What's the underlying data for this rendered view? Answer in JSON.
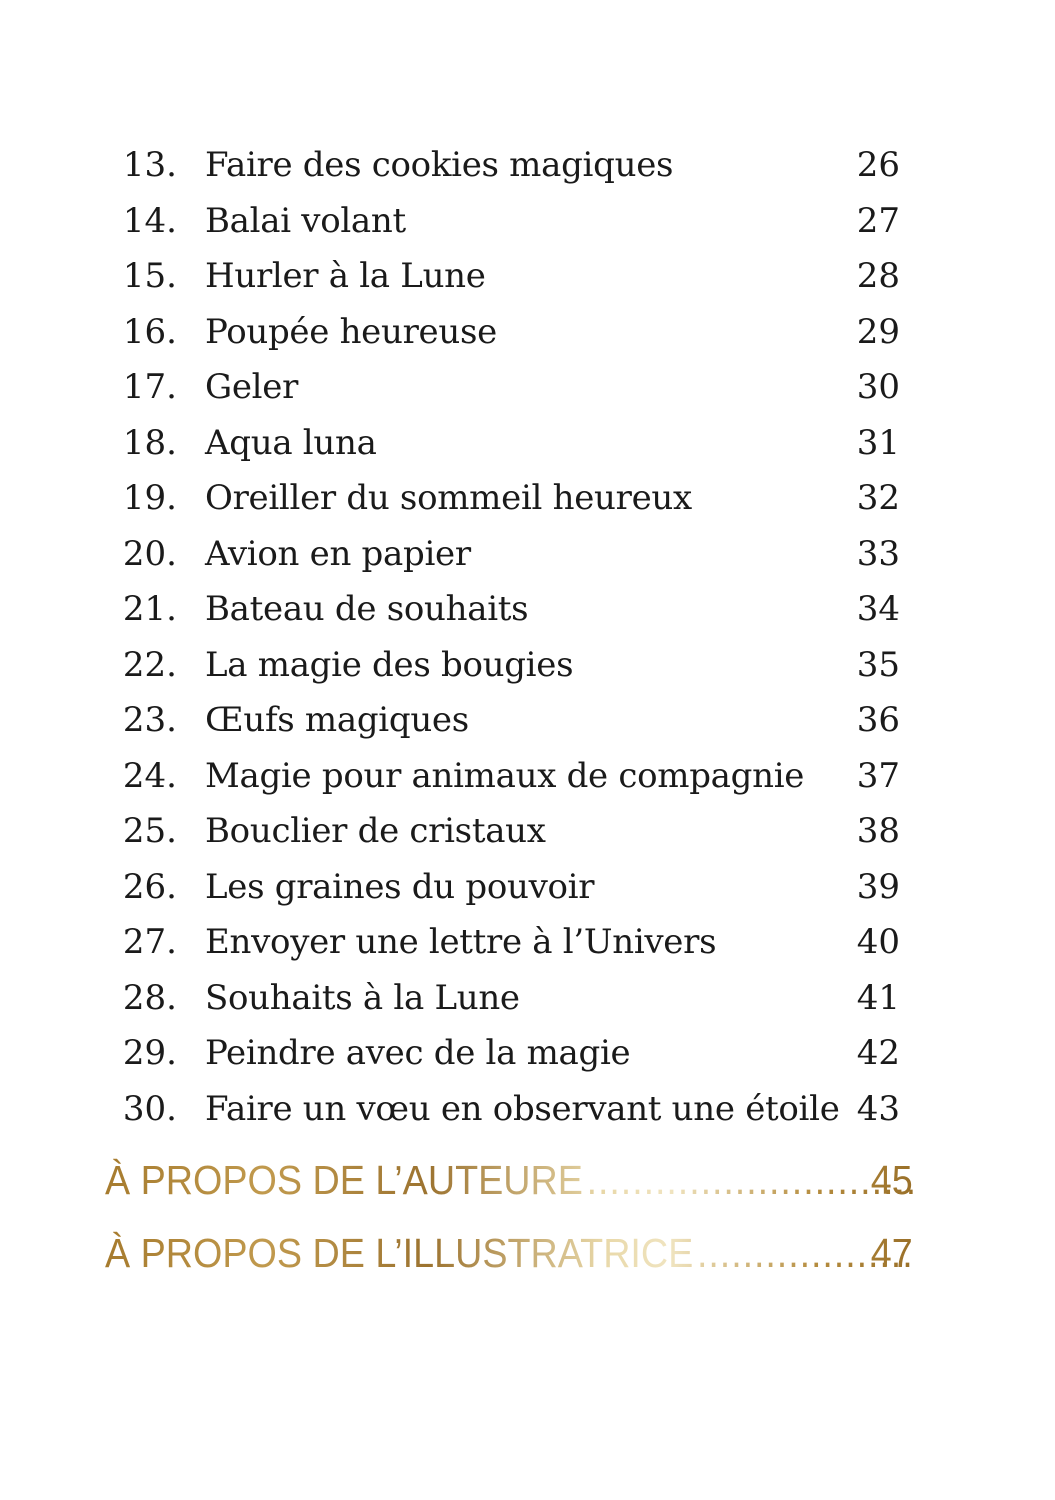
{
  "entries": [
    {
      "num": "13.",
      "title": "Faire des cookies magiques",
      "page": "26"
    },
    {
      "num": "14.",
      "title": "Balai volant",
      "page": "27"
    },
    {
      "num": "15.",
      "title": "Hurler à la Lune",
      "page": "28"
    },
    {
      "num": "16.",
      "title": "Poupée heureuse",
      "page": "29"
    },
    {
      "num": "17.",
      "title": "Geler",
      "page": "30"
    },
    {
      "num": "18.",
      "title": "Aqua luna",
      "page": "31"
    },
    {
      "num": "19.",
      "title": "Oreiller du sommeil heureux",
      "page": "32"
    },
    {
      "num": "20.",
      "title": "Avion en papier",
      "page": "33"
    },
    {
      "num": "21.",
      "title": "Bateau de souhaits",
      "page": "34"
    },
    {
      "num": "22.",
      "title": "La magie des bougies",
      "page": "35"
    },
    {
      "num": "23.",
      "title": "Œufs magiques",
      "page": "36"
    },
    {
      "num": "24.",
      "title": "Magie pour animaux de compagnie",
      "page": "37"
    },
    {
      "num": "25.",
      "title": "Bouclier de cristaux",
      "page": "38"
    },
    {
      "num": "26.",
      "title": "Les graines du pouvoir",
      "page": "39"
    },
    {
      "num": "27.",
      "title": "Envoyer une lettre à l’Univers",
      "page": "40"
    },
    {
      "num": "28.",
      "title": "Souhaits à la Lune",
      "page": "41"
    },
    {
      "num": "29.",
      "title": "Peindre avec de la magie",
      "page": "42"
    },
    {
      "num": "30.",
      "title": "Faire un vœu en observant une étoile",
      "page": "43"
    }
  ],
  "sections": [
    {
      "title": "À PROPOS DE L’AUTEURE",
      "page": "45"
    },
    {
      "title": "À PROPOS DE L’ILLUSTRATRICE",
      "page": "47"
    }
  ],
  "colors": {
    "text": "#1a1a1a",
    "gold_dark": "#9c7330",
    "gold_light": "#f0e4c0"
  }
}
